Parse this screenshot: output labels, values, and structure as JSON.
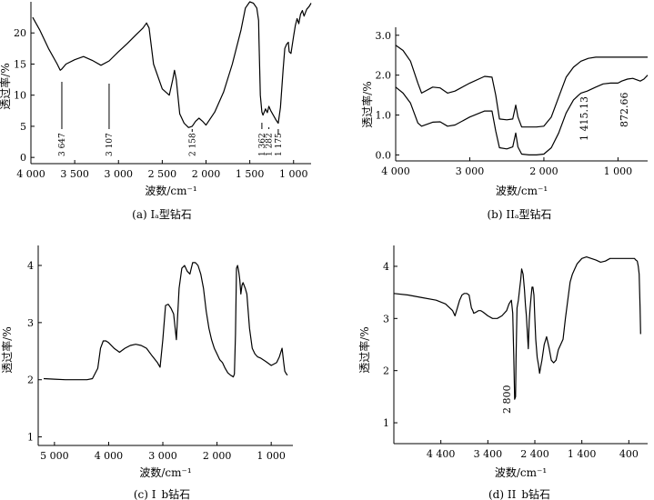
{
  "chart_data": [
    {
      "type": "line",
      "caption": "(a) Iₐ型钻石",
      "xlabel": "波数/cm⁻¹",
      "ylabel": "透过率/%",
      "xlim": [
        4000,
        800
      ],
      "ylim": [
        -1,
        25
      ],
      "xticks": [
        4000,
        3500,
        3000,
        2500,
        2000,
        1500,
        1000
      ],
      "xtick_labels": [
        "4 000",
        "3 500",
        "3 000",
        "2 500",
        "2 000",
        "1 500",
        "1 000"
      ],
      "yticks": [
        0,
        5,
        10,
        15,
        20
      ],
      "ytick_labels": [
        "0",
        "5",
        "10",
        "15",
        "20"
      ],
      "series": [
        {
          "x": [
            3980,
            3900,
            3800,
            3700,
            3665,
            3647,
            3600,
            3500,
            3400,
            3300,
            3200,
            3107,
            3000,
            2900,
            2800,
            2720,
            2680,
            2650,
            2600,
            2500,
            2420,
            2380,
            2360,
            2340,
            2300,
            2250,
            2200,
            2158,
            2120,
            2080,
            2040,
            2000,
            1900,
            1800,
            1700,
            1600,
            1550,
            1500,
            1460,
            1420,
            1400,
            1395,
            1380,
            1362,
            1350,
            1320,
            1300,
            1282,
            1260,
            1220,
            1200,
            1175,
            1150,
            1120,
            1100,
            1080,
            1060,
            1050,
            1030,
            1000,
            980,
            960,
            940,
            920,
            900,
            880,
            850,
            820,
            800
          ],
          "y": [
            22.5,
            20.5,
            17.5,
            15,
            14,
            14.2,
            15,
            15.7,
            16.2,
            15.6,
            14.8,
            15.5,
            17,
            18.3,
            19.7,
            20.8,
            21.6,
            20.8,
            15,
            11,
            10,
            12.5,
            14,
            12.5,
            7,
            5.5,
            4.8,
            5,
            5.8,
            6.3,
            5.8,
            5.2,
            7.3,
            10.5,
            15,
            20.5,
            24,
            25,
            24.8,
            24,
            22,
            19,
            10,
            7.3,
            6.8,
            7.8,
            7.2,
            8.2,
            7.5,
            6.5,
            6,
            5.5,
            8,
            14,
            17.5,
            18.2,
            18.5,
            17,
            16.7,
            19.5,
            21.2,
            22.3,
            21.5,
            23,
            23.6,
            22.7,
            23.8,
            24.3,
            24.8
          ]
        }
      ],
      "annotations": [
        "3 647",
        "3 107",
        "2 158",
        "1 362",
        "1 282",
        "1 175"
      ]
    },
    {
      "type": "line",
      "caption": "(b) IIₐ型钻石",
      "xlabel": "波数/cm⁻¹",
      "ylabel": "透过率/%",
      "xlim": [
        4000,
        600
      ],
      "ylim": [
        -0.15,
        3.2
      ],
      "xticks": [
        4000,
        3000,
        2000,
        1000
      ],
      "xtick_labels": [
        "4 000",
        "3 000",
        "2 000",
        "1 000"
      ],
      "yticks": [
        0,
        1,
        2,
        3
      ],
      "ytick_labels": [
        "0.0",
        "1.0",
        "2.0",
        "3.0"
      ],
      "series": [
        {
          "x": [
            4000,
            3900,
            3800,
            3700,
            3650,
            3500,
            3400,
            3300,
            3200,
            3000,
            2800,
            2700,
            2650,
            2600,
            2500,
            2420,
            2380,
            2350,
            2300,
            2200,
            2100,
            2000,
            1900,
            1800,
            1700,
            1600,
            1500,
            1400,
            1300,
            1200,
            1100,
            1000,
            900,
            800,
            700,
            600
          ],
          "y": [
            2.75,
            2.62,
            2.35,
            1.8,
            1.55,
            1.7,
            1.68,
            1.55,
            1.6,
            1.8,
            1.97,
            1.95,
            1.5,
            0.9,
            0.88,
            0.9,
            1.25,
            0.95,
            0.7,
            0.7,
            0.7,
            0.72,
            0.95,
            1.45,
            1.95,
            2.2,
            2.35,
            2.42,
            2.45,
            2.45,
            2.45,
            2.45,
            2.45,
            2.45,
            2.45,
            2.45
          ]
        },
        {
          "x": [
            4000,
            3900,
            3800,
            3700,
            3650,
            3500,
            3400,
            3300,
            3200,
            3000,
            2800,
            2700,
            2650,
            2600,
            2500,
            2420,
            2380,
            2350,
            2300,
            2200,
            2100,
            2000,
            1900,
            1800,
            1700,
            1600,
            1530,
            1500,
            1415,
            1300,
            1200,
            1100,
            1000,
            950,
            873,
            800,
            700,
            650,
            600
          ],
          "y": [
            1.7,
            1.55,
            1.3,
            0.8,
            0.72,
            0.82,
            0.83,
            0.72,
            0.75,
            0.95,
            1.1,
            1.1,
            0.6,
            0.18,
            0.15,
            0.2,
            0.55,
            0.2,
            0.02,
            0.0,
            0.0,
            0.02,
            0.18,
            0.55,
            1.05,
            1.38,
            1.5,
            1.55,
            1.6,
            1.7,
            1.78,
            1.8,
            1.8,
            1.85,
            1.9,
            1.92,
            1.85,
            1.9,
            2.0
          ]
        }
      ],
      "annotations": [
        "1 415.13",
        "872.66"
      ]
    },
    {
      "type": "line",
      "caption": "(c) I_b钻石",
      "xlabel": "波数/cm⁻¹",
      "ylabel": "透过率/%",
      "xlim": [
        5300,
        600
      ],
      "ylim": [
        0.85,
        4.35
      ],
      "xticks": [
        5000,
        4000,
        3000,
        2000,
        1000
      ],
      "xtick_labels": [
        "5 000",
        "4 000",
        "3 000",
        "2 000",
        "1 000"
      ],
      "yticks": [
        1,
        2,
        3,
        4
      ],
      "ytick_labels": [
        "1",
        "2",
        "3",
        "4"
      ],
      "series": [
        {
          "x": [
            5200,
            5000,
            4800,
            4600,
            4400,
            4300,
            4200,
            4150,
            4100,
            4050,
            4000,
            3900,
            3800,
            3700,
            3600,
            3500,
            3400,
            3300,
            3200,
            3100,
            3050,
            3000,
            2950,
            2900,
            2850,
            2800,
            2750,
            2700,
            2650,
            2600,
            2550,
            2500,
            2450,
            2400,
            2350,
            2300,
            2250,
            2200,
            2150,
            2100,
            2050,
            2000,
            1950,
            1900,
            1850,
            1800,
            1750,
            1700,
            1680,
            1660,
            1640,
            1620,
            1600,
            1580,
            1560,
            1540,
            1520,
            1500,
            1480,
            1450,
            1400,
            1350,
            1300,
            1250,
            1200,
            1100,
            1000,
            900,
            850,
            800,
            770,
            750,
            720,
            700
          ],
          "y": [
            2.02,
            2.01,
            2.0,
            2.0,
            2.0,
            2.02,
            2.2,
            2.55,
            2.68,
            2.68,
            2.65,
            2.55,
            2.48,
            2.55,
            2.6,
            2.62,
            2.6,
            2.55,
            2.42,
            2.3,
            2.22,
            2.7,
            3.3,
            3.32,
            3.25,
            3.15,
            2.7,
            3.6,
            3.95,
            4.0,
            3.9,
            3.85,
            4.05,
            4.05,
            4.0,
            3.85,
            3.6,
            3.2,
            2.9,
            2.7,
            2.55,
            2.45,
            2.35,
            2.3,
            2.2,
            2.12,
            2.08,
            2.05,
            2.1,
            2.8,
            3.95,
            4.0,
            3.9,
            3.75,
            3.5,
            3.65,
            3.7,
            3.65,
            3.6,
            3.5,
            2.9,
            2.55,
            2.45,
            2.4,
            2.38,
            2.32,
            2.25,
            2.3,
            2.4,
            2.55,
            2.3,
            2.15,
            2.1,
            2.08
          ]
        }
      ]
    },
    {
      "type": "line",
      "caption": "(d) II_b钻石",
      "xlabel": "波数/cm⁻¹",
      "ylabel": "透过率/%",
      "xlim": [
        5400,
        0
      ],
      "ylim": [
        0.6,
        4.4
      ],
      "xticks": [
        4400,
        3400,
        2400,
        1400,
        400
      ],
      "xtick_labels": [
        "4 400",
        "3 400",
        "2 400",
        "1 400",
        "400"
      ],
      "yticks": [
        1,
        2,
        3,
        4
      ],
      "ytick_labels": [
        "1",
        "2",
        "3",
        "4"
      ],
      "series": [
        {
          "x": [
            5400,
            5100,
            4800,
            4500,
            4300,
            4150,
            4100,
            4050,
            4000,
            3950,
            3900,
            3850,
            3800,
            3750,
            3720,
            3700,
            3650,
            3600,
            3550,
            3500,
            3400,
            3300,
            3200,
            3100,
            3000,
            2950,
            2900,
            2870,
            2850,
            2830,
            2810,
            2800,
            2780,
            2750,
            2720,
            2700,
            2680,
            2650,
            2620,
            2600,
            2580,
            2560,
            2540,
            2520,
            2500,
            2480,
            2460,
            2440,
            2420,
            2400,
            2380,
            2350,
            2320,
            2300,
            2280,
            2250,
            2200,
            2150,
            2100,
            2050,
            2000,
            1950,
            1900,
            1850,
            1800,
            1750,
            1700,
            1650,
            1600,
            1550,
            1500,
            1400,
            1300,
            1200,
            1100,
            1000,
            900,
            800,
            700,
            600,
            500,
            400,
            330,
            300,
            280,
            250,
            220,
            200,
            180,
            160,
            150
          ],
          "y": [
            3.48,
            3.45,
            3.4,
            3.35,
            3.28,
            3.15,
            3.05,
            3.2,
            3.35,
            3.45,
            3.48,
            3.48,
            3.45,
            3.2,
            3.15,
            3.1,
            3.12,
            3.15,
            3.15,
            3.12,
            3.05,
            3.0,
            3.0,
            3.05,
            3.15,
            3.28,
            3.35,
            3.1,
            2.3,
            1.45,
            1.5,
            2.2,
            3.2,
            3.35,
            3.6,
            3.75,
            3.95,
            3.85,
            3.55,
            3.25,
            3.05,
            2.75,
            2.42,
            2.95,
            3.2,
            3.42,
            3.6,
            3.6,
            3.45,
            3.0,
            2.6,
            2.25,
            2.1,
            1.95,
            2.05,
            2.2,
            2.5,
            2.65,
            2.45,
            2.2,
            2.15,
            2.2,
            2.4,
            2.5,
            2.6,
            3.0,
            3.35,
            3.7,
            3.85,
            3.95,
            4.05,
            4.15,
            4.18,
            4.15,
            4.12,
            4.08,
            4.1,
            4.15,
            4.15,
            4.15,
            4.15,
            4.15,
            4.15,
            4.15,
            4.15,
            4.12,
            4.1,
            4.0,
            3.85,
            3.2,
            2.7
          ]
        }
      ],
      "annotations": [
        "2 800"
      ]
    }
  ]
}
